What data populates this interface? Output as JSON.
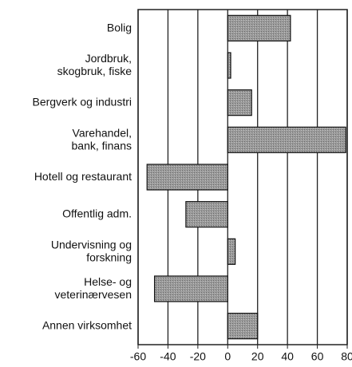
{
  "chart_data": {
    "type": "hbar",
    "categories": [
      "Bolig",
      "Jordbruk,\nskogbruk, fiske",
      "Bergverk og industri",
      "Varehandel,\nbank, finans",
      "Hotell og restaurant",
      "Offentlig adm.",
      "Undervisning og\nforskning",
      "Helse- og\nveterinærvesen",
      "Annen virksomhet"
    ],
    "values": [
      42,
      2,
      16,
      79,
      -54,
      -28,
      5,
      -49,
      20
    ],
    "color": "#8f8f8f",
    "xlim": [
      -60,
      80
    ],
    "xticks": [
      -60,
      -40,
      -20,
      0,
      20,
      40,
      60,
      80
    ],
    "grid": true
  }
}
